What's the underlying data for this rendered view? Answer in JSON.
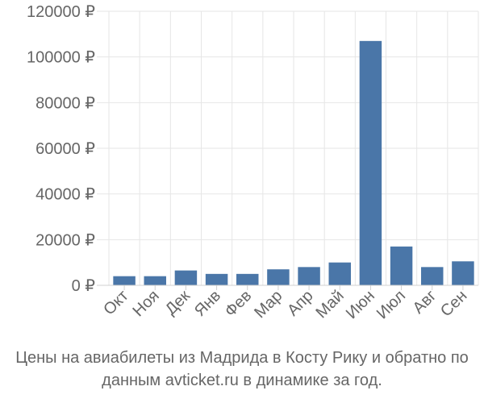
{
  "chart_data": {
    "type": "bar",
    "categories": [
      "Окт",
      "Ноя",
      "Дек",
      "Янв",
      "Фев",
      "Мар",
      "Апр",
      "Май",
      "Июн",
      "Июл",
      "Авг",
      "Сен"
    ],
    "values": [
      4000,
      4000,
      6500,
      5000,
      5000,
      7000,
      8000,
      10000,
      107000,
      17000,
      8000,
      10500
    ],
    "ylim": [
      0,
      120000
    ],
    "yticks": [
      0,
      20000,
      40000,
      60000,
      80000,
      100000,
      120000
    ],
    "ytick_labels": [
      "0 ₽",
      "20000 ₽",
      "40000 ₽",
      "60000 ₽",
      "80000 ₽",
      "100000 ₽",
      "120000 ₽"
    ],
    "bar_color": "#4a76a8",
    "grid": true,
    "title": "Цены на авиабилеты из Мадрида в Косту Рику и обратно по данным avticket.ru в динамике за год.",
    "xlabel": "",
    "ylabel": ""
  }
}
